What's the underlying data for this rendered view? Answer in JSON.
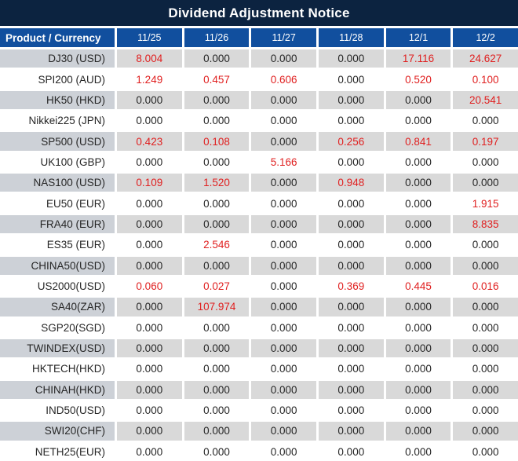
{
  "title": "Dividend Adjustment Notice",
  "header": {
    "product_column": "Product / Currency",
    "date_columns": [
      "11/25",
      "11/26",
      "11/27",
      "11/28",
      "12/1",
      "12/2"
    ]
  },
  "rows": [
    {
      "product": "DJ30 (USD)",
      "values": [
        "8.004",
        "0.000",
        "0.000",
        "0.000",
        "17.116",
        "24.627"
      ]
    },
    {
      "product": "SPI200 (AUD)",
      "values": [
        "1.249",
        "0.457",
        "0.606",
        "0.000",
        "0.520",
        "0.100"
      ]
    },
    {
      "product": "HK50 (HKD)",
      "values": [
        "0.000",
        "0.000",
        "0.000",
        "0.000",
        "0.000",
        "20.541"
      ]
    },
    {
      "product": "Nikkei225 (JPN)",
      "values": [
        "0.000",
        "0.000",
        "0.000",
        "0.000",
        "0.000",
        "0.000"
      ]
    },
    {
      "product": "SP500 (USD)",
      "values": [
        "0.423",
        "0.108",
        "0.000",
        "0.256",
        "0.841",
        "0.197"
      ]
    },
    {
      "product": "UK100 (GBP)",
      "values": [
        "0.000",
        "0.000",
        "5.166",
        "0.000",
        "0.000",
        "0.000"
      ]
    },
    {
      "product": "NAS100 (USD)",
      "values": [
        "0.109",
        "1.520",
        "0.000",
        "0.948",
        "0.000",
        "0.000"
      ]
    },
    {
      "product": "EU50 (EUR)",
      "values": [
        "0.000",
        "0.000",
        "0.000",
        "0.000",
        "0.000",
        "1.915"
      ]
    },
    {
      "product": "FRA40 (EUR)",
      "values": [
        "0.000",
        "0.000",
        "0.000",
        "0.000",
        "0.000",
        "8.835"
      ]
    },
    {
      "product": "ES35 (EUR)",
      "values": [
        "0.000",
        "2.546",
        "0.000",
        "0.000",
        "0.000",
        "0.000"
      ]
    },
    {
      "product": "CHINA50(USD)",
      "values": [
        "0.000",
        "0.000",
        "0.000",
        "0.000",
        "0.000",
        "0.000"
      ]
    },
    {
      "product": "US2000(USD)",
      "values": [
        "0.060",
        "0.027",
        "0.000",
        "0.369",
        "0.445",
        "0.016"
      ]
    },
    {
      "product": "SA40(ZAR)",
      "values": [
        "0.000",
        "107.974",
        "0.000",
        "0.000",
        "0.000",
        "0.000"
      ]
    },
    {
      "product": "SGP20(SGD)",
      "values": [
        "0.000",
        "0.000",
        "0.000",
        "0.000",
        "0.000",
        "0.000"
      ]
    },
    {
      "product": "TWINDEX(USD)",
      "values": [
        "0.000",
        "0.000",
        "0.000",
        "0.000",
        "0.000",
        "0.000"
      ]
    },
    {
      "product": "HKTECH(HKD)",
      "values": [
        "0.000",
        "0.000",
        "0.000",
        "0.000",
        "0.000",
        "0.000"
      ]
    },
    {
      "product": "CHINAH(HKD)",
      "values": [
        "0.000",
        "0.000",
        "0.000",
        "0.000",
        "0.000",
        "0.000"
      ]
    },
    {
      "product": "IND50(USD)",
      "values": [
        "0.000",
        "0.000",
        "0.000",
        "0.000",
        "0.000",
        "0.000"
      ]
    },
    {
      "product": "SWI20(CHF)",
      "values": [
        "0.000",
        "0.000",
        "0.000",
        "0.000",
        "0.000",
        "0.000"
      ]
    },
    {
      "product": "NETH25(EUR)",
      "values": [
        "0.000",
        "0.000",
        "0.000",
        "0.000",
        "0.000",
        "0.000"
      ]
    }
  ],
  "colors": {
    "title_bg": "#0c2340",
    "header_bg": "#114f9e",
    "row_alt_product_bg": "#cdd1d7",
    "row_alt_value_bg": "#d9d9d9",
    "text": "#262626",
    "nonzero": "#e02020"
  },
  "chart_data": {
    "type": "table",
    "title": "Dividend Adjustment Notice",
    "columns": [
      "Product / Currency",
      "11/25",
      "11/26",
      "11/27",
      "11/28",
      "12/1",
      "12/2"
    ],
    "rows": [
      [
        "DJ30 (USD)",
        "8.004",
        "0.000",
        "0.000",
        "0.000",
        "17.116",
        "24.627"
      ],
      [
        "SPI200 (AUD)",
        "1.249",
        "0.457",
        "0.606",
        "0.000",
        "0.520",
        "0.100"
      ],
      [
        "HK50 (HKD)",
        "0.000",
        "0.000",
        "0.000",
        "0.000",
        "0.000",
        "20.541"
      ],
      [
        "Nikkei225 (JPN)",
        "0.000",
        "0.000",
        "0.000",
        "0.000",
        "0.000",
        "0.000"
      ],
      [
        "SP500 (USD)",
        "0.423",
        "0.108",
        "0.000",
        "0.256",
        "0.841",
        "0.197"
      ],
      [
        "UK100 (GBP)",
        "0.000",
        "0.000",
        "5.166",
        "0.000",
        "0.000",
        "0.000"
      ],
      [
        "NAS100 (USD)",
        "0.109",
        "1.520",
        "0.000",
        "0.948",
        "0.000",
        "0.000"
      ],
      [
        "EU50 (EUR)",
        "0.000",
        "0.000",
        "0.000",
        "0.000",
        "0.000",
        "1.915"
      ],
      [
        "FRA40 (EUR)",
        "0.000",
        "0.000",
        "0.000",
        "0.000",
        "0.000",
        "8.835"
      ],
      [
        "ES35 (EUR)",
        "0.000",
        "2.546",
        "0.000",
        "0.000",
        "0.000",
        "0.000"
      ],
      [
        "CHINA50(USD)",
        "0.000",
        "0.000",
        "0.000",
        "0.000",
        "0.000",
        "0.000"
      ],
      [
        "US2000(USD)",
        "0.060",
        "0.027",
        "0.000",
        "0.369",
        "0.445",
        "0.016"
      ],
      [
        "SA40(ZAR)",
        "0.000",
        "107.974",
        "0.000",
        "0.000",
        "0.000",
        "0.000"
      ],
      [
        "SGP20(SGD)",
        "0.000",
        "0.000",
        "0.000",
        "0.000",
        "0.000",
        "0.000"
      ],
      [
        "TWINDEX(USD)",
        "0.000",
        "0.000",
        "0.000",
        "0.000",
        "0.000",
        "0.000"
      ],
      [
        "HKTECH(HKD)",
        "0.000",
        "0.000",
        "0.000",
        "0.000",
        "0.000",
        "0.000"
      ],
      [
        "CHINAH(HKD)",
        "0.000",
        "0.000",
        "0.000",
        "0.000",
        "0.000",
        "0.000"
      ],
      [
        "IND50(USD)",
        "0.000",
        "0.000",
        "0.000",
        "0.000",
        "0.000",
        "0.000"
      ],
      [
        "SWI20(CHF)",
        "0.000",
        "0.000",
        "0.000",
        "0.000",
        "0.000",
        "0.000"
      ],
      [
        "NETH25(EUR)",
        "0.000",
        "0.000",
        "0.000",
        "0.000",
        "0.000",
        "0.000"
      ]
    ]
  }
}
